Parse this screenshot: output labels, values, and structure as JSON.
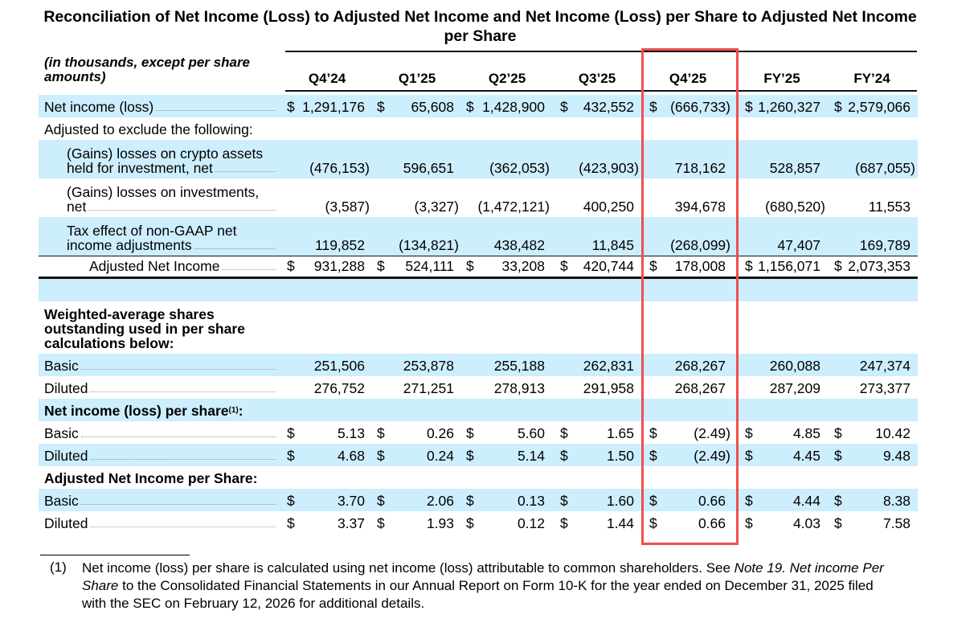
{
  "title": "Reconciliation of Net Income (Loss) to Adjusted Net Income and Net Income (Loss) per Share to Adjusted Net Income per Share",
  "units_label": [
    "(in thousands, except per share",
    "amounts)"
  ],
  "columns": [
    "Q4’24",
    "Q1’25",
    "Q2’25",
    "Q3’25",
    "Q4’25",
    "FY’25",
    "FY’24"
  ],
  "highlighted_column": "Q4’25",
  "colors": {
    "row_shade": "#cdeefd",
    "highlight_box": "#ee4f4f"
  },
  "rows": [
    {
      "label": [
        "Net income (loss)"
      ],
      "indent": 0,
      "bold": false,
      "shaded": true,
      "leader": true,
      "dollar": true,
      "values": [
        "1,291,176",
        "65,608",
        "1,428,900",
        "432,552",
        "(666,733)",
        "1,260,327",
        "2,579,066"
      ]
    },
    {
      "label": [
        "Adjusted to exclude the following:"
      ],
      "indent": 0,
      "bold": false,
      "shaded": false,
      "leader": false,
      "dollar": false,
      "values": []
    },
    {
      "label": [
        "(Gains) losses on crypto assets",
        "held for investment, net"
      ],
      "indent": 1,
      "bold": false,
      "shaded": true,
      "leader": true,
      "dollar": false,
      "values": [
        "(476,153)",
        "596,651",
        "(362,053)",
        "(423,903)",
        "718,162",
        "528,857",
        "(687,055)"
      ]
    },
    {
      "label": [
        "(Gains) losses on investments,",
        "net"
      ],
      "indent": 1,
      "bold": false,
      "shaded": false,
      "leader": true,
      "dollar": false,
      "values": [
        "(3,587)",
        "(3,327)",
        "(1,472,121)",
        "400,250",
        "394,678",
        "(680,520)",
        "11,553"
      ]
    },
    {
      "label": [
        "Tax effect of non-GAAP net",
        "income adjustments"
      ],
      "indent": 1,
      "bold": false,
      "shaded": true,
      "leader": true,
      "dollar": false,
      "values": [
        "119,852",
        "(134,821)",
        "438,482",
        "11,845",
        "(268,099)",
        "47,407",
        "169,789"
      ]
    },
    {
      "label": [
        "Adjusted Net Income"
      ],
      "indent": 2,
      "bold": false,
      "shaded": false,
      "leader": true,
      "dollar": true,
      "total": true,
      "values": [
        "931,288",
        "524,111",
        "33,208",
        "420,744",
        "178,008",
        "1,156,071",
        "2,073,353"
      ]
    },
    {
      "label": [],
      "indent": 0,
      "bold": false,
      "shaded": true,
      "leader": false,
      "dollar": false,
      "values": []
    },
    {
      "label": [
        "Weighted-average shares",
        "outstanding used in per share",
        "calculations below:"
      ],
      "indent": 0,
      "bold": true,
      "shaded": false,
      "leader": false,
      "dollar": false,
      "values": []
    },
    {
      "label": [
        "Basic"
      ],
      "indent": 0,
      "bold": false,
      "shaded": true,
      "leader": true,
      "dollar": false,
      "values": [
        "251,506",
        "253,878",
        "255,188",
        "262,831",
        "268,267",
        "260,088",
        "247,374"
      ]
    },
    {
      "label": [
        "Diluted"
      ],
      "indent": 0,
      "bold": false,
      "shaded": false,
      "leader": true,
      "dollar": false,
      "values": [
        "276,752",
        "271,251",
        "278,913",
        "291,958",
        "268,267",
        "287,209",
        "273,377"
      ]
    },
    {
      "label": [
        "Net income (loss) per share"
      ],
      "footnote_ref": "(1)",
      "suffix": ":",
      "indent": 0,
      "bold": true,
      "shaded": true,
      "leader": false,
      "dollar": false,
      "values": []
    },
    {
      "label": [
        "Basic"
      ],
      "indent": 0,
      "bold": false,
      "shaded": false,
      "leader": true,
      "dollar": true,
      "values": [
        "5.13",
        "0.26",
        "5.60",
        "1.65",
        "(2.49)",
        "4.85",
        "10.42"
      ]
    },
    {
      "label": [
        "Diluted"
      ],
      "indent": 0,
      "bold": false,
      "shaded": true,
      "leader": true,
      "dollar": true,
      "values": [
        "4.68",
        "0.24",
        "5.14",
        "1.50",
        "(2.49)",
        "4.45",
        "9.48"
      ]
    },
    {
      "label": [
        "Adjusted Net Income per Share:"
      ],
      "indent": 0,
      "bold": true,
      "shaded": false,
      "leader": false,
      "dollar": false,
      "values": []
    },
    {
      "label": [
        "Basic"
      ],
      "indent": 0,
      "bold": false,
      "shaded": true,
      "leader": true,
      "dollar": true,
      "values": [
        "3.70",
        "2.06",
        "0.13",
        "1.60",
        "0.66",
        "4.44",
        "8.38"
      ]
    },
    {
      "label": [
        "Diluted"
      ],
      "indent": 0,
      "bold": false,
      "shaded": false,
      "leader": true,
      "dollar": true,
      "values": [
        "3.37",
        "1.93",
        "0.12",
        "1.44",
        "0.66",
        "4.03",
        "7.58"
      ]
    }
  ],
  "currency_symbol": "$",
  "footnote": {
    "number": "(1)",
    "text_before": "Net income (loss) per share is calculated using net income (loss) attributable to common shareholders. See ",
    "text_italic": "Note 19. Net income Per Share",
    "text_after": " to the Consolidated Financial Statements in our Annual Report on Form 10-K for the year ended on December 31, 2025 filed with the SEC on February 12, 2026 for additional details."
  }
}
